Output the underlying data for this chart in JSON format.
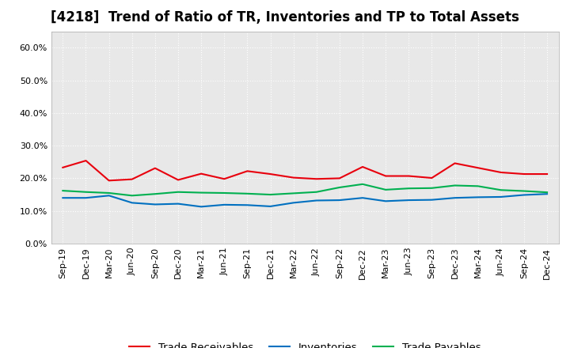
{
  "title": "[4218]  Trend of Ratio of TR, Inventories and TP to Total Assets",
  "x_labels": [
    "Sep-19",
    "Dec-19",
    "Mar-20",
    "Jun-20",
    "Sep-20",
    "Dec-20",
    "Mar-21",
    "Jun-21",
    "Sep-21",
    "Dec-21",
    "Mar-22",
    "Jun-22",
    "Sep-22",
    "Dec-22",
    "Mar-23",
    "Jun-23",
    "Sep-23",
    "Dec-23",
    "Mar-24",
    "Jun-24",
    "Sep-24",
    "Dec-24"
  ],
  "trade_receivables": [
    0.233,
    0.254,
    0.193,
    0.197,
    0.231,
    0.195,
    0.214,
    0.198,
    0.222,
    0.213,
    0.202,
    0.198,
    0.2,
    0.235,
    0.207,
    0.207,
    0.201,
    0.246,
    0.232,
    0.218,
    0.213,
    0.213
  ],
  "inventories": [
    0.14,
    0.14,
    0.147,
    0.125,
    0.12,
    0.122,
    0.113,
    0.119,
    0.118,
    0.114,
    0.125,
    0.132,
    0.133,
    0.14,
    0.13,
    0.133,
    0.134,
    0.14,
    0.142,
    0.143,
    0.149,
    0.152
  ],
  "trade_payables": [
    0.162,
    0.158,
    0.155,
    0.147,
    0.152,
    0.158,
    0.156,
    0.155,
    0.153,
    0.15,
    0.154,
    0.158,
    0.172,
    0.182,
    0.165,
    0.169,
    0.17,
    0.178,
    0.176,
    0.164,
    0.161,
    0.157
  ],
  "colors": {
    "trade_receivables": "#e8000d",
    "inventories": "#0070c0",
    "trade_payables": "#00b050"
  },
  "ylim": [
    0.0,
    0.65
  ],
  "yticks": [
    0.0,
    0.1,
    0.2,
    0.3,
    0.4,
    0.5,
    0.6
  ],
  "background_color": "#ffffff",
  "plot_bg_color": "#e8e8e8",
  "grid_color": "#ffffff",
  "legend_labels": [
    "Trade Receivables",
    "Inventories",
    "Trade Payables"
  ],
  "title_fontsize": 12,
  "tick_fontsize": 8,
  "legend_fontsize": 9.5
}
